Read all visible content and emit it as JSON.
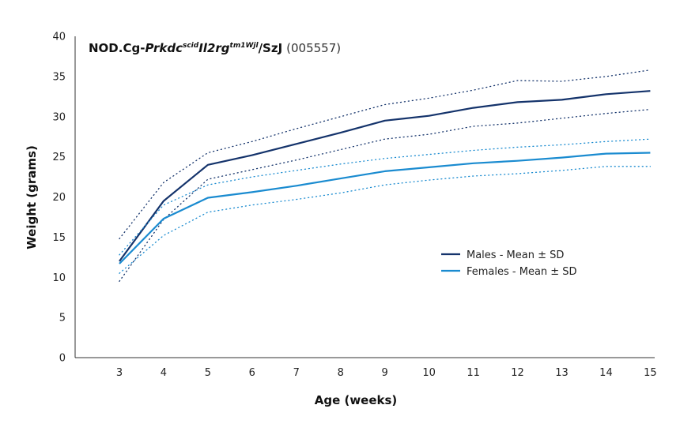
{
  "chart_data": {
    "type": "line",
    "title": {
      "prefix": "NOD.Cg-",
      "gene1": "Prkdc",
      "gene1_sup": "scid",
      "gene2": "Il2rg",
      "gene2_sup": "tm1Wjl",
      "suffix": "/SzJ",
      "stock": "(005557)"
    },
    "xlabel": "Age (weeks)",
    "ylabel": "Weight (grams)",
    "x": [
      3,
      4,
      5,
      6,
      7,
      8,
      9,
      10,
      11,
      12,
      13,
      14,
      15
    ],
    "xlim": [
      2,
      15.1
    ],
    "ylim": [
      0,
      40
    ],
    "yticks": [
      0,
      5,
      10,
      15,
      20,
      25,
      30,
      35,
      40
    ],
    "grid": false,
    "legend_position": "right",
    "series": [
      {
        "name": "Males - Mean ± SD",
        "color": "#14336b",
        "mean": [
          12.0,
          19.5,
          24.0,
          25.2,
          26.6,
          28.0,
          29.5,
          30.1,
          31.1,
          31.8,
          32.1,
          32.8,
          33.2
        ],
        "upper": [
          14.8,
          21.8,
          25.5,
          26.9,
          28.5,
          30.0,
          31.5,
          32.3,
          33.3,
          34.5,
          34.4,
          35.0,
          35.8
        ],
        "lower": [
          9.5,
          17.2,
          22.2,
          23.4,
          24.6,
          25.9,
          27.2,
          27.8,
          28.8,
          29.2,
          29.8,
          30.4,
          30.9
        ]
      },
      {
        "name": "Females - Mean ± SD",
        "color": "#1a8bd0",
        "mean": [
          11.7,
          17.3,
          19.9,
          20.6,
          21.4,
          22.3,
          23.2,
          23.7,
          24.2,
          24.5,
          24.9,
          25.4,
          25.5
        ],
        "upper": [
          12.8,
          19.0,
          21.5,
          22.5,
          23.3,
          24.1,
          24.8,
          25.3,
          25.8,
          26.2,
          26.5,
          26.9,
          27.2
        ],
        "lower": [
          10.5,
          15.2,
          18.1,
          19.0,
          19.7,
          20.5,
          21.5,
          22.1,
          22.6,
          22.9,
          23.3,
          23.8,
          23.8
        ]
      }
    ]
  }
}
